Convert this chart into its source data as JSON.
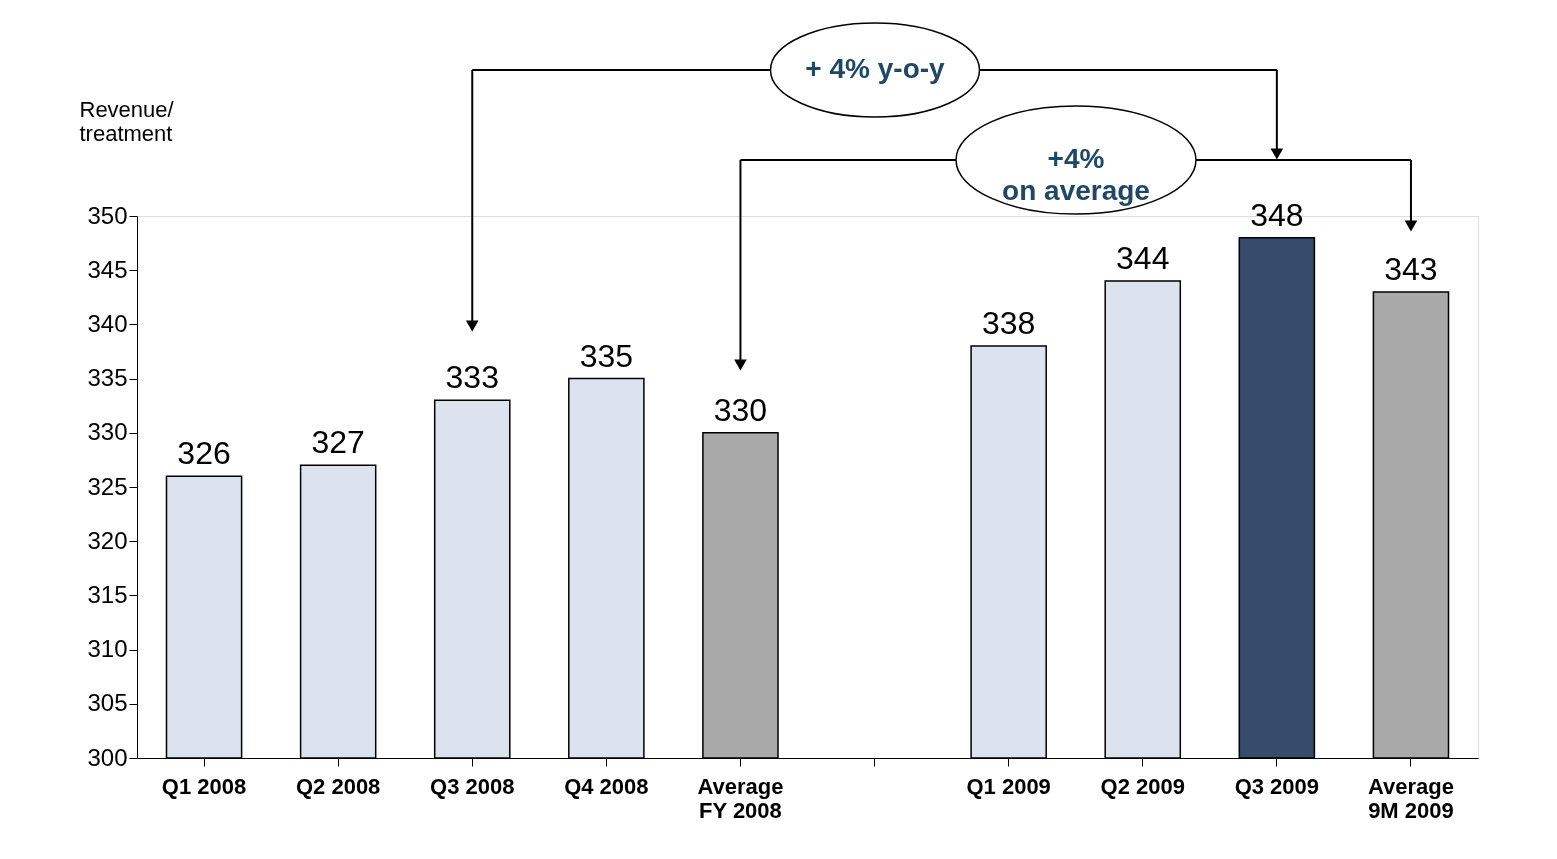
{
  "chart_data": {
    "type": "bar",
    "ylabel": "Revenue/\ntreatment",
    "categories": [
      "Q1 2008",
      "Q2 2008",
      "Q3 2008",
      "Q4 2008",
      "Average\nFY 2008",
      null,
      "Q1 2009",
      "Q2 2009",
      "Q3 2009",
      "Average\n9M 2009"
    ],
    "values": [
      326,
      327,
      333,
      335,
      330,
      null,
      338,
      344,
      348,
      343
    ],
    "colors": [
      "#dce3ee",
      "#dce3ee",
      "#dce3ee",
      "#dce3ee",
      "#a9a9a9",
      null,
      "#dce3ee",
      "#dce3ee",
      "#364c6b",
      "#a9a9a9"
    ],
    "ylim": [
      300,
      350
    ],
    "yticks": [
      300,
      305,
      310,
      315,
      320,
      325,
      330,
      335,
      340,
      345,
      350
    ],
    "data_labels": true,
    "grid": false,
    "legend": false,
    "annotations": [
      "+ 4% y-o-y",
      "+4%\non average"
    ]
  }
}
